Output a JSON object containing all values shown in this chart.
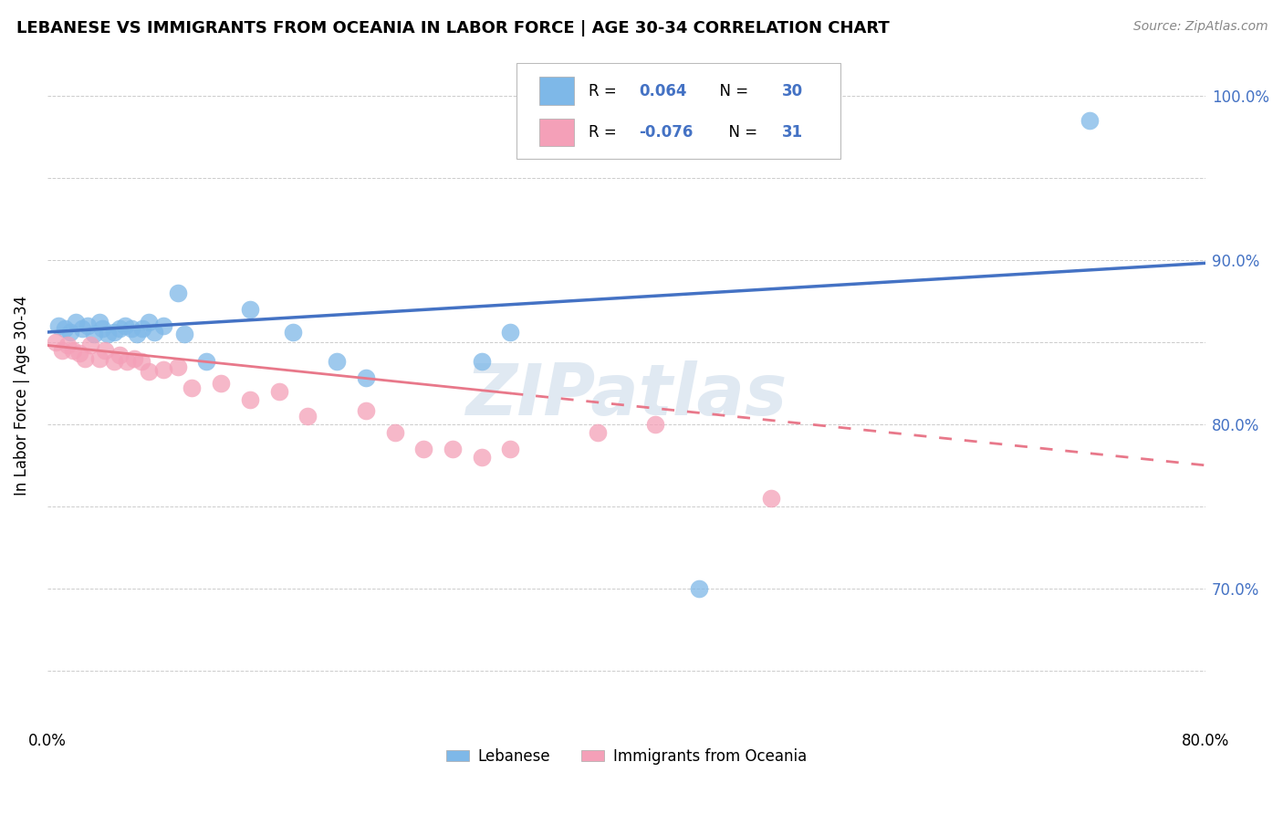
{
  "title": "LEBANESE VS IMMIGRANTS FROM OCEANIA IN LABOR FORCE | AGE 30-34 CORRELATION CHART",
  "source": "Source: ZipAtlas.com",
  "ylabel": "In Labor Force | Age 30-34",
  "legend_label1": "Lebanese",
  "legend_label2": "Immigrants from Oceania",
  "R1": 0.064,
  "N1": 30,
  "R2": -0.076,
  "N2": 31,
  "color1": "#7eb8e8",
  "color2": "#f4a0b8",
  "trendline_color1": "#4472c4",
  "trendline_color2": "#e8788a",
  "xlim": [
    0.0,
    0.8
  ],
  "ylim": [
    0.615,
    1.02
  ],
  "xticks": [
    0.0,
    0.1,
    0.2,
    0.3,
    0.4,
    0.5,
    0.6,
    0.7,
    0.8
  ],
  "yticks": [
    0.65,
    0.7,
    0.75,
    0.8,
    0.85,
    0.9,
    0.95,
    1.0
  ],
  "xtick_labels": [
    "0.0%",
    "",
    "",
    "",
    "",
    "",
    "",
    "",
    "80.0%"
  ],
  "ytick_labels": [
    "",
    "70.0%",
    "",
    "80.0%",
    "",
    "90.0%",
    "",
    "100.0%"
  ],
  "watermark": "ZIPatlas",
  "blue_x": [
    0.008,
    0.012,
    0.016,
    0.02,
    0.024,
    0.028,
    0.032,
    0.036,
    0.038,
    0.042,
    0.046,
    0.05,
    0.054,
    0.058,
    0.062,
    0.066,
    0.07,
    0.074,
    0.08,
    0.09,
    0.095,
    0.11,
    0.14,
    0.17,
    0.2,
    0.22,
    0.3,
    0.32,
    0.45,
    0.72
  ],
  "blue_y": [
    0.86,
    0.858,
    0.856,
    0.862,
    0.858,
    0.86,
    0.855,
    0.862,
    0.858,
    0.855,
    0.856,
    0.858,
    0.86,
    0.858,
    0.855,
    0.858,
    0.862,
    0.856,
    0.86,
    0.88,
    0.855,
    0.838,
    0.87,
    0.856,
    0.838,
    0.828,
    0.838,
    0.856,
    0.7,
    0.985
  ],
  "pink_x": [
    0.006,
    0.01,
    0.014,
    0.018,
    0.022,
    0.026,
    0.03,
    0.036,
    0.04,
    0.046,
    0.05,
    0.055,
    0.06,
    0.065,
    0.07,
    0.08,
    0.09,
    0.1,
    0.12,
    0.14,
    0.16,
    0.18,
    0.22,
    0.24,
    0.26,
    0.28,
    0.3,
    0.32,
    0.38,
    0.42,
    0.5
  ],
  "pink_y": [
    0.85,
    0.845,
    0.848,
    0.845,
    0.843,
    0.84,
    0.848,
    0.84,
    0.845,
    0.838,
    0.842,
    0.838,
    0.84,
    0.838,
    0.832,
    0.833,
    0.835,
    0.822,
    0.825,
    0.815,
    0.82,
    0.805,
    0.808,
    0.795,
    0.785,
    0.785,
    0.78,
    0.785,
    0.795,
    0.8,
    0.755
  ],
  "blue_trendline_x0": 0.0,
  "blue_trendline_y0": 0.856,
  "blue_trendline_x1": 0.8,
  "blue_trendline_y1": 0.898,
  "pink_trendline_x0": 0.0,
  "pink_trendline_y0": 0.848,
  "pink_trendline_x1": 0.8,
  "pink_trendline_y1": 0.775
}
